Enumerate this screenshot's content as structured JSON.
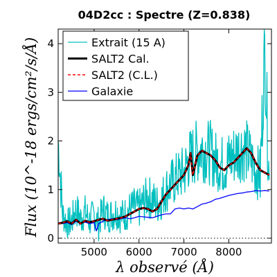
{
  "chart_data": {
    "type": "line",
    "title": "04D2cc : Spectre (Z=0.838)",
    "xlabel": "λ observé (Å)",
    "ylabel": "Flux (10^-18 ergs/cm²/s/Å)",
    "xlim": [
      4200,
      8950
    ],
    "ylim": [
      -0.1,
      4.3
    ],
    "xticks": [
      5000,
      6000,
      7000,
      8000
    ],
    "yticks": [
      0,
      1,
      2,
      3,
      4
    ],
    "zero_line": {
      "y": 0,
      "style": "dotted"
    },
    "legend_position": "top-left",
    "series": [
      {
        "name": "Extrait (15 A)",
        "color": "#00bfbf",
        "style": "noisy",
        "x": [
          4200,
          4300,
          4400,
          4500,
          4600,
          4700,
          4800,
          4900,
          5000,
          5100,
          5200,
          5300,
          5400,
          5500,
          5600,
          5700,
          5800,
          5900,
          6000,
          6100,
          6200,
          6300,
          6400,
          6500,
          6600,
          6700,
          6800,
          6900,
          7000,
          7100,
          7200,
          7300,
          7400,
          7500,
          7600,
          7700,
          7800,
          7900,
          8000,
          8100,
          8200,
          8300,
          8400,
          8500,
          8600,
          8700,
          8800,
          8900
        ],
        "values": [
          2.0,
          0.5,
          0.3,
          0.35,
          0.6,
          0.4,
          0.55,
          0.35,
          0.5,
          0.3,
          0.6,
          0.45,
          0.5,
          0.55,
          0.45,
          0.5,
          0.6,
          0.65,
          0.6,
          0.75,
          0.85,
          0.8,
          0.7,
          0.8,
          1.0,
          1.1,
          1.2,
          1.3,
          1.35,
          1.6,
          1.7,
          1.8,
          1.85,
          1.8,
          1.75,
          1.6,
          1.55,
          1.5,
          1.6,
          1.7,
          1.8,
          1.85,
          1.8,
          1.6,
          1.4,
          1.3,
          3.9,
          1.2
        ]
      },
      {
        "name": "SALT2 Cal.",
        "color": "#000000",
        "style": "thick",
        "x": [
          4200,
          4300,
          4400,
          4500,
          4600,
          4700,
          4800,
          4900,
          5000,
          5100,
          5200,
          5300,
          5400,
          5500,
          5600,
          5700,
          5800,
          5900,
          6000,
          6100,
          6200,
          6300,
          6400,
          6500,
          6600,
          6700,
          6800,
          6900,
          7000,
          7100,
          7150,
          7200,
          7300,
          7400,
          7500,
          7600,
          7700,
          7800,
          7900,
          8000,
          8100,
          8200,
          8300,
          8400,
          8500,
          8600,
          8700,
          8800,
          8900
        ],
        "values": [
          0.3,
          0.32,
          0.35,
          0.3,
          0.38,
          0.3,
          0.36,
          0.33,
          0.35,
          0.38,
          0.4,
          0.36,
          0.38,
          0.4,
          0.42,
          0.45,
          0.5,
          0.55,
          0.6,
          0.62,
          0.6,
          0.55,
          0.6,
          0.75,
          0.9,
          1.0,
          1.1,
          1.2,
          1.3,
          1.5,
          1.75,
          1.3,
          1.7,
          1.8,
          1.75,
          1.7,
          1.6,
          1.45,
          1.4,
          1.5,
          1.55,
          1.65,
          1.75,
          1.85,
          1.75,
          1.55,
          1.4,
          1.35,
          1.3
        ]
      },
      {
        "name": "SALT2 (C.L.)",
        "color": "#ff0000",
        "style": "dashed",
        "x": [
          4200,
          4300,
          4400,
          4500,
          4600,
          4700,
          4800,
          4900,
          5000,
          5100,
          5200,
          5300,
          5400,
          5500,
          5600,
          5700,
          5800,
          5900,
          6000,
          6100,
          6200,
          6300,
          6400,
          6500,
          6600,
          6700,
          6800,
          6900,
          7000,
          7100,
          7150,
          7200,
          7300,
          7400,
          7500,
          7600,
          7700,
          7800,
          7900,
          8000,
          8100,
          8200,
          8300,
          8400,
          8500,
          8600,
          8700,
          8800,
          8900
        ],
        "values": [
          0.3,
          0.32,
          0.35,
          0.3,
          0.38,
          0.3,
          0.36,
          0.33,
          0.35,
          0.38,
          0.4,
          0.36,
          0.38,
          0.4,
          0.42,
          0.45,
          0.5,
          0.55,
          0.6,
          0.62,
          0.6,
          0.55,
          0.6,
          0.75,
          0.9,
          1.0,
          1.1,
          1.2,
          1.3,
          1.5,
          1.75,
          1.3,
          1.7,
          1.8,
          1.75,
          1.7,
          1.6,
          1.45,
          1.4,
          1.5,
          1.55,
          1.65,
          1.75,
          1.85,
          1.75,
          1.55,
          1.4,
          1.35,
          1.3
        ]
      },
      {
        "name": "Galaxie",
        "color": "#0000ff",
        "style": "thin",
        "x": [
          4200,
          4300,
          4400,
          4500,
          4600,
          4700,
          4800,
          4900,
          5000,
          5050,
          5100,
          5200,
          5300,
          5400,
          5500,
          5600,
          5700,
          5800,
          5900,
          6000,
          6100,
          6200,
          6300,
          6400,
          6500,
          6600,
          6700,
          6800,
          6900,
          7000,
          7100,
          7200,
          7300,
          7400,
          7500,
          7600,
          7700,
          7800,
          7900,
          8000,
          8100,
          8200,
          8300,
          8400,
          8500,
          8600,
          8700,
          8800,
          8900
        ],
        "values": [
          0.3,
          0.3,
          0.32,
          0.28,
          0.35,
          0.3,
          0.33,
          0.3,
          0.32,
          0.15,
          0.3,
          0.35,
          0.38,
          0.4,
          0.38,
          0.4,
          0.42,
          0.4,
          0.42,
          0.45,
          0.44,
          0.43,
          0.42,
          0.45,
          0.48,
          0.5,
          0.5,
          0.6,
          0.62,
          0.6,
          0.62,
          0.6,
          0.65,
          0.7,
          0.72,
          0.75,
          0.8,
          0.82,
          0.85,
          0.88,
          0.9,
          0.92,
          0.93,
          0.95,
          0.96,
          0.98,
          0.97,
          0.98,
          0.97
        ]
      }
    ]
  }
}
